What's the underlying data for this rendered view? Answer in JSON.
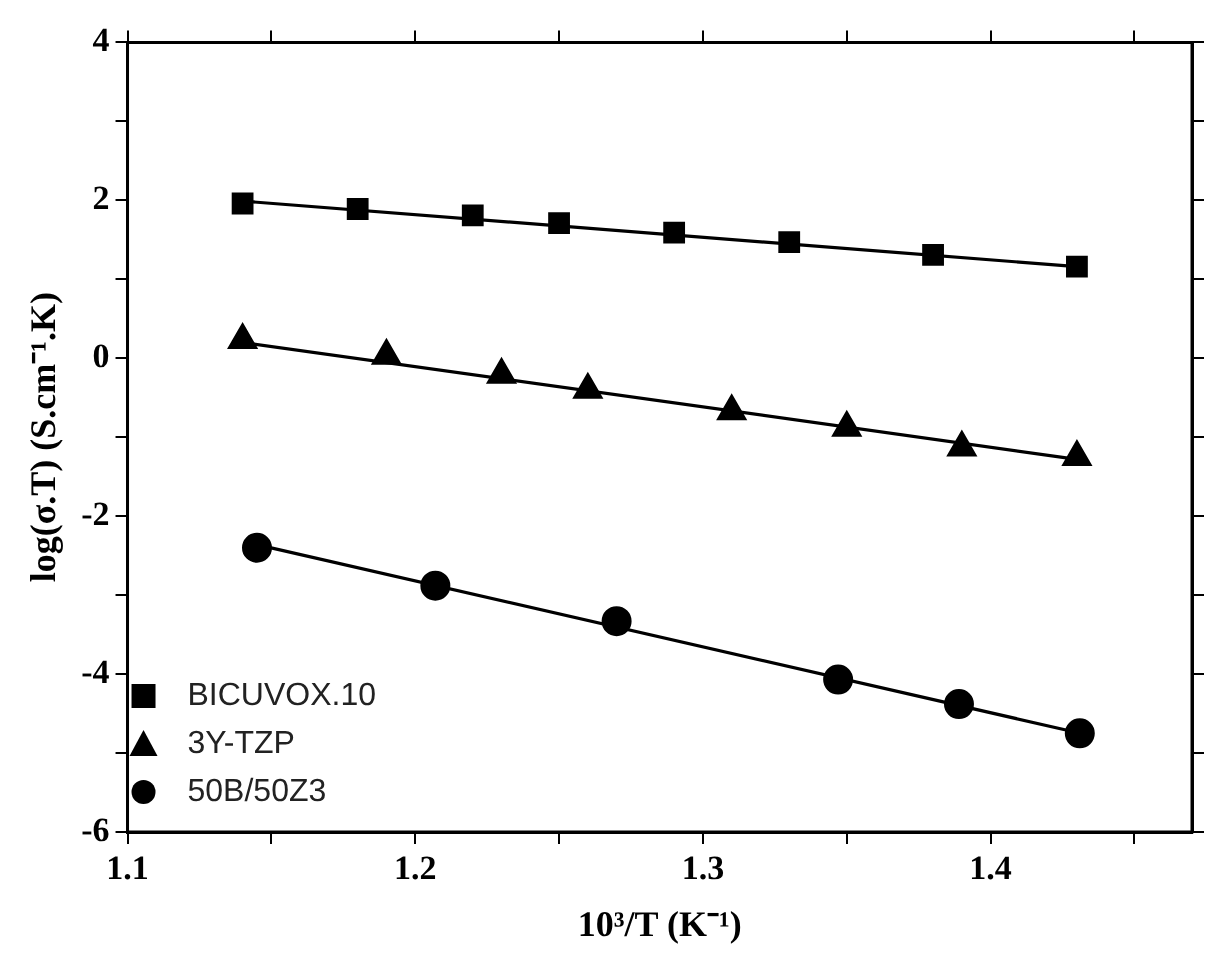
{
  "chart_data": {
    "type": "scatter",
    "xlabel": "10³/T (K⁻¹)",
    "ylabel": "log(σ.T) (S.cm⁻¹.K)",
    "xlim": [
      1.1,
      1.47
    ],
    "ylim": [
      -6,
      4
    ],
    "xticks": [
      1.1,
      {
        "value": 1.15,
        "label": null
      },
      1.2,
      {
        "value": 1.25,
        "label": null
      },
      1.3,
      {
        "value": 1.35,
        "label": null
      },
      1.4,
      {
        "value": 1.45,
        "label": null
      }
    ],
    "yticks": [
      -6,
      {
        "value": -5,
        "label": null
      },
      -4,
      {
        "value": -3,
        "label": null
      },
      -2,
      {
        "value": -1,
        "label": null
      },
      0,
      {
        "value": 1,
        "label": null
      },
      2,
      {
        "value": 3,
        "label": null
      },
      4
    ],
    "grid": false,
    "legend": "bottom left",
    "series": [
      {
        "name": "BICUVOX.10",
        "color": "#000000",
        "marker": "square",
        "x": [
          1.14,
          1.18,
          1.22,
          1.25,
          1.29,
          1.33,
          1.38,
          1.43
        ],
        "values": [
          1.96,
          1.89,
          1.81,
          1.71,
          1.59,
          1.47,
          1.31,
          1.16
        ]
      },
      {
        "name": "3Y-TZP",
        "color": "#000000",
        "marker": "triangle",
        "x": [
          1.14,
          1.19,
          1.23,
          1.26,
          1.31,
          1.35,
          1.39,
          1.43
        ],
        "values": [
          0.23,
          0.03,
          -0.21,
          -0.4,
          -0.67,
          -0.88,
          -1.13,
          -1.25
        ]
      },
      {
        "name": "50B/50Z3",
        "color": "#000000",
        "marker": "circle",
        "x": [
          1.145,
          1.207,
          1.27,
          1.347,
          1.389,
          1.431
        ],
        "values": [
          -2.4,
          -2.88,
          -3.33,
          -4.07,
          -4.38,
          -4.75
        ]
      },
      {
        "type": "line",
        "color": "#000000",
        "marker": "none",
        "x": [
          1.14,
          1.43
        ],
        "values": [
          1.99,
          1.16
        ]
      },
      {
        "type": "line",
        "color": "#000000",
        "marker": "none",
        "x": [
          1.14,
          1.43
        ],
        "values": [
          0.2,
          -1.28
        ]
      },
      {
        "type": "line",
        "color": "#000000",
        "marker": "none",
        "x": [
          1.145,
          1.43
        ],
        "values": [
          -2.36,
          -4.74
        ]
      }
    ]
  }
}
